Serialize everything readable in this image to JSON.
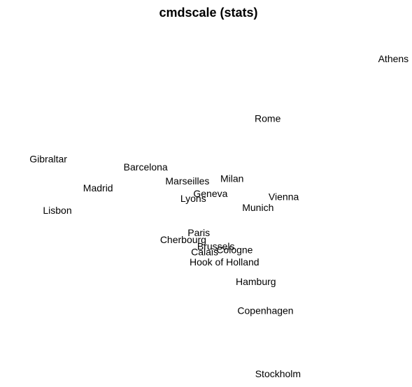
{
  "chart_data": {
    "type": "scatter",
    "title": "cmdscale (stats)",
    "xlabel": "",
    "ylabel": "",
    "axes_visible": false,
    "grid": false,
    "marker": "text-label",
    "points": [
      {
        "label": "Athens",
        "x": 2290.27,
        "y": 1798.8
      },
      {
        "label": "Barcelona",
        "x": -825.38,
        "y": 546.81
      },
      {
        "label": "Brussels",
        "x": 59.18,
        "y": -367.08
      },
      {
        "label": "Calais",
        "x": -82.85,
        "y": -429.91
      },
      {
        "label": "Cherbourg",
        "x": -352.5,
        "y": -290.91
      },
      {
        "label": "Cologne",
        "x": 293.69,
        "y": -405.31
      },
      {
        "label": "Copenhagen",
        "x": 681.93,
        "y": -1108.64
      },
      {
        "label": "Geneva",
        "x": -9.42,
        "y": 240.41
      },
      {
        "label": "Gibraltar",
        "x": -2048.45,
        "y": 642.46
      },
      {
        "label": "Hamburg",
        "x": 561.11,
        "y": -773.37
      },
      {
        "label": "Hook of Holland",
        "x": 164.92,
        "y": -549.37
      },
      {
        "label": "Lisbon",
        "x": -1935.04,
        "y": 49.12
      },
      {
        "label": "Lyons",
        "x": -226.42,
        "y": 187.09
      },
      {
        "label": "Madrid",
        "x": -1423.35,
        "y": 305.88
      },
      {
        "label": "Marseilles",
        "x": -299.5,
        "y": 388.81
      },
      {
        "label": "Milan",
        "x": 260.88,
        "y": 416.67
      },
      {
        "label": "Munich",
        "x": 587.68,
        "y": 81.18
      },
      {
        "label": "Paris",
        "x": -156.84,
        "y": -211.14
      },
      {
        "label": "Rome",
        "x": 709.41,
        "y": 1109.37
      },
      {
        "label": "Stockholm",
        "x": 839.45,
        "y": -1836.79
      },
      {
        "label": "Vienna",
        "x": 911.23,
        "y": 205.93
      }
    ]
  }
}
